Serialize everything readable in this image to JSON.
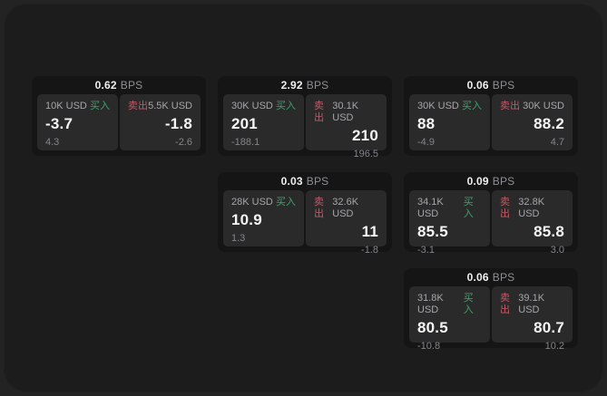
{
  "labels": {
    "buy": "买入",
    "sell": "卖出",
    "bps_unit": "BPS"
  },
  "colors": {
    "buy_green": "#3da26b",
    "sell_red": "#c35a66",
    "panel_bg": "#1c1c1d",
    "card_bg": "#151516",
    "quote_bg": "#2a2a2b"
  },
  "cards": [
    {
      "bps": "0.62",
      "buy": {
        "notional": "10K USD",
        "price": "-3.7",
        "delta": "4.3"
      },
      "sell": {
        "notional": "5.5K USD",
        "price": "-1.8",
        "delta": "-2.6"
      }
    },
    {
      "bps": "2.92",
      "buy": {
        "notional": "30K USD",
        "price": "201",
        "delta": "-188.1"
      },
      "sell": {
        "notional": "30.1K USD",
        "price": "210",
        "delta": "196.5"
      }
    },
    {
      "bps": "0.06",
      "buy": {
        "notional": "30K USD",
        "price": "88",
        "delta": "-4.9"
      },
      "sell": {
        "notional": "30K USD",
        "price": "88.2",
        "delta": "4.7"
      }
    },
    {
      "bps": "0.03",
      "buy": {
        "notional": "28K USD",
        "price": "10.9",
        "delta": "1.3"
      },
      "sell": {
        "notional": "32.6K USD",
        "price": "11",
        "delta": "-1.8"
      }
    },
    {
      "bps": "0.09",
      "buy": {
        "notional": "34.1K USD",
        "price": "85.5",
        "delta": "-3.1"
      },
      "sell": {
        "notional": "32.8K USD",
        "price": "85.8",
        "delta": "3.0"
      }
    },
    {
      "bps": "0.06",
      "buy": {
        "notional": "31.8K USD",
        "price": "80.5",
        "delta": "-10.8"
      },
      "sell": {
        "notional": "39.1K USD",
        "price": "80.7",
        "delta": "10.2"
      }
    }
  ]
}
